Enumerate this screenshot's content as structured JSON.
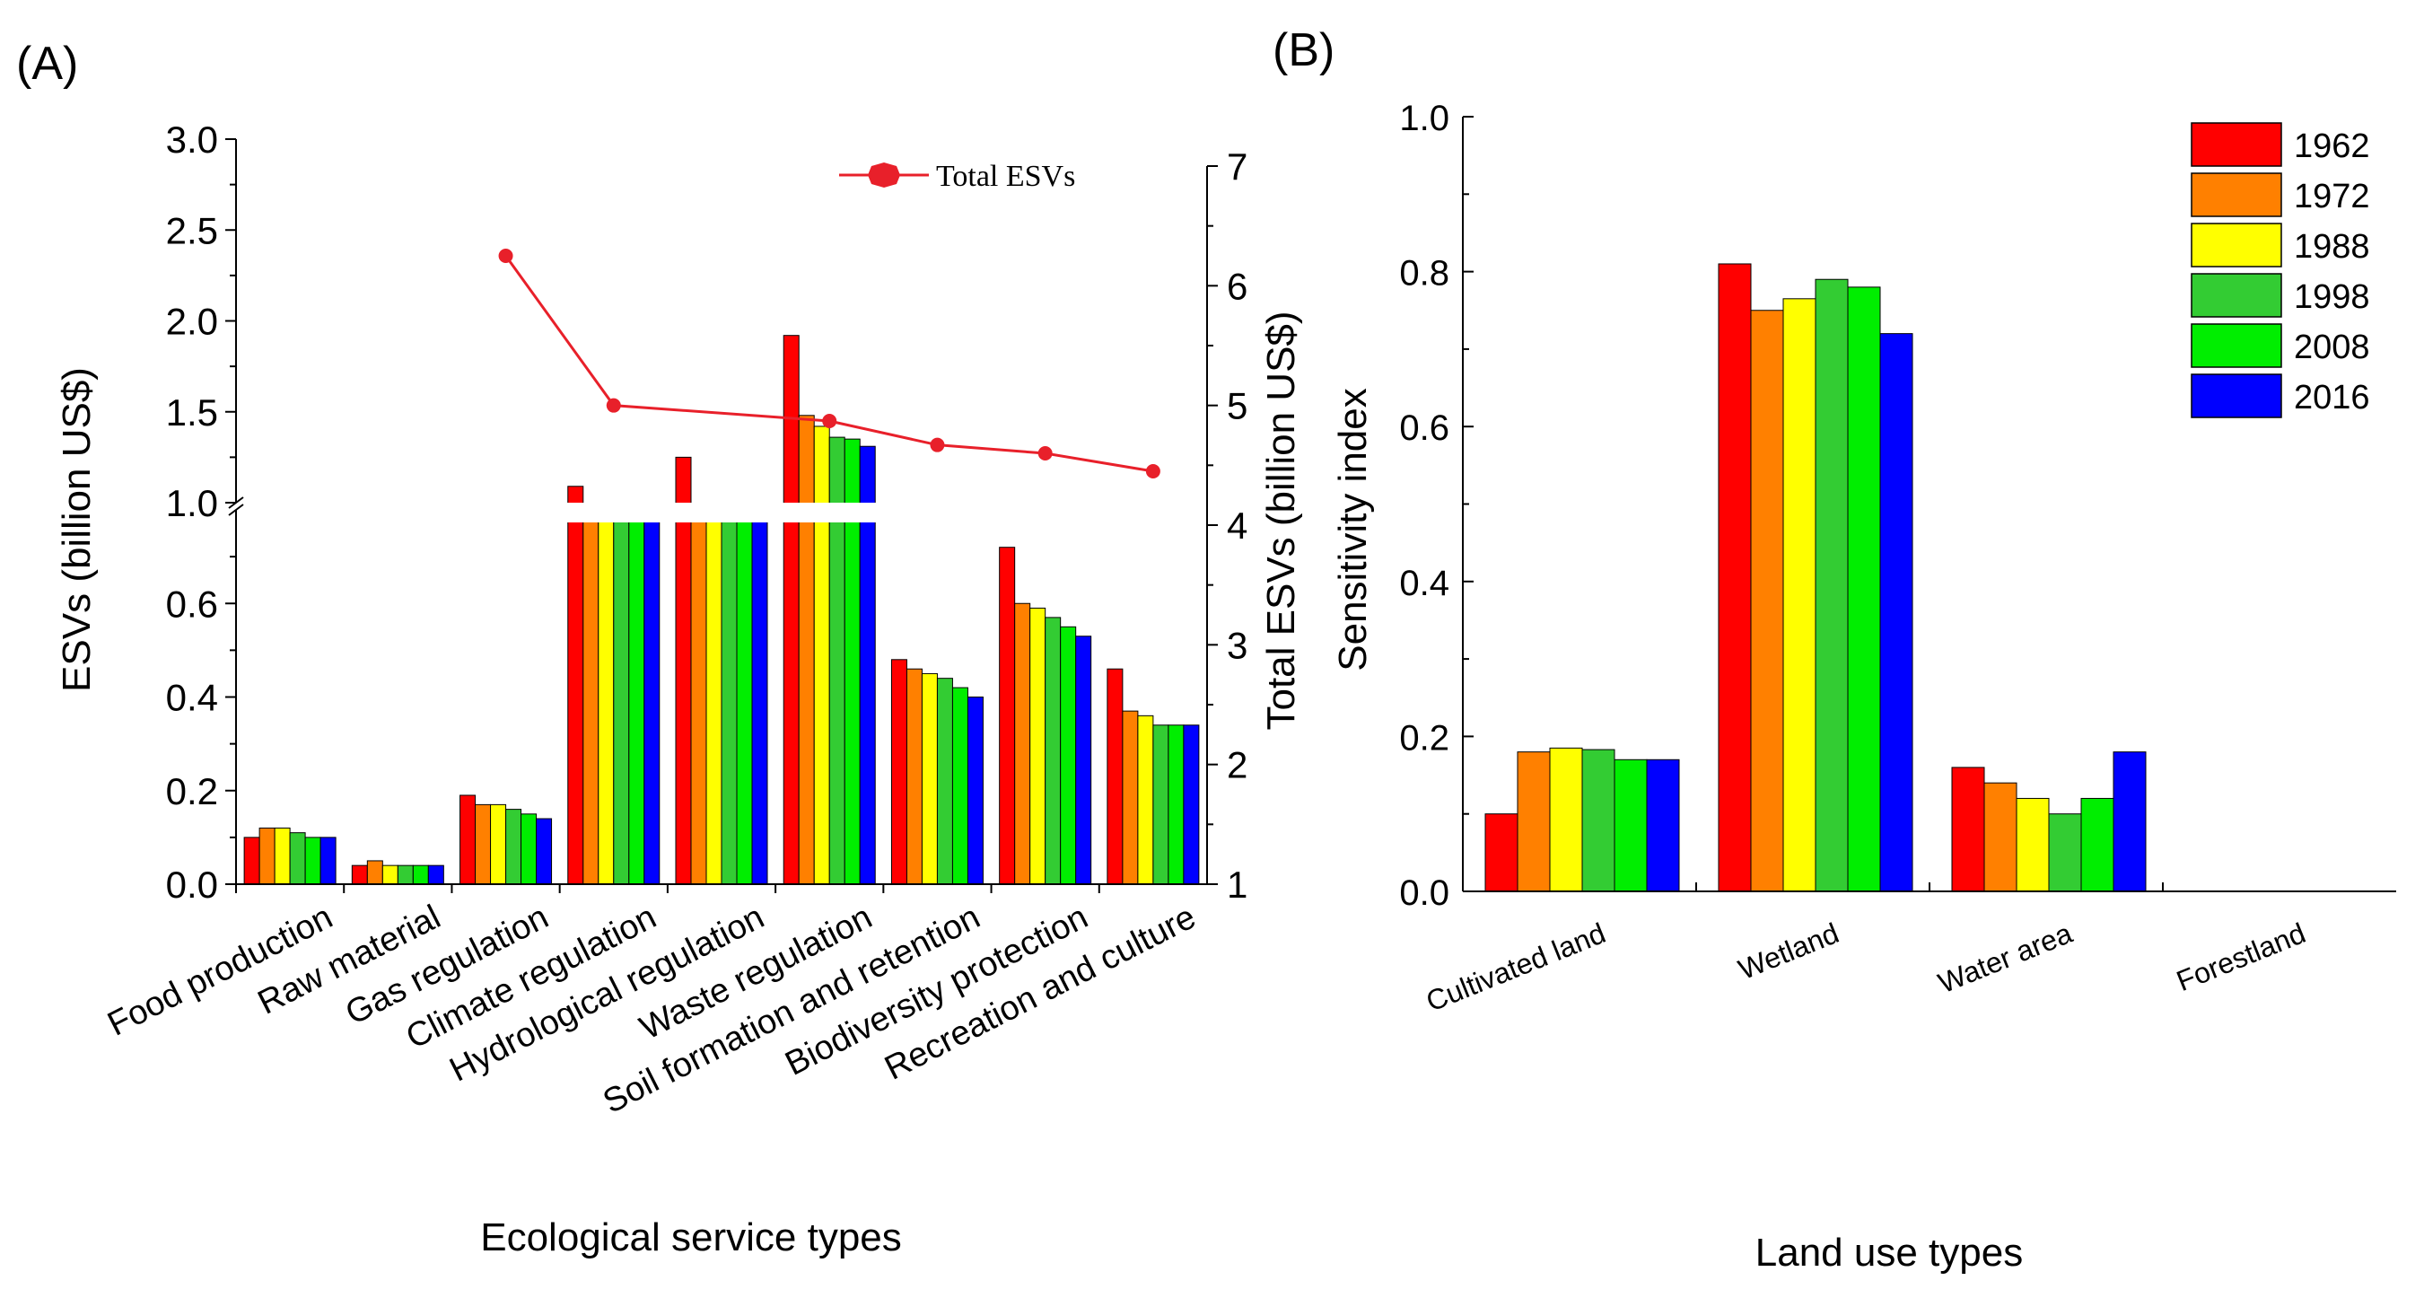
{
  "colors": {
    "series": [
      "#ff0000",
      "#ff8000",
      "#ffff00",
      "#33cc33",
      "#00ee00",
      "#0000ff"
    ],
    "line": "#e8202a",
    "axis": "#000000"
  },
  "chart_data": [
    {
      "panel_label": "(A)",
      "type": "bar",
      "xlabel": "Ecological service types",
      "ylabel": "ESVs (billion US$)",
      "y2label": "Total ESVs (billion US$)",
      "y_axis_break": {
        "lower": [
          0,
          0.8
        ],
        "upper": [
          1.0,
          3.0
        ]
      },
      "yticks_lower": [
        "0.0",
        "0.2",
        "0.4",
        "0.6"
      ],
      "yticks_upper": [
        "1.0",
        "1.5",
        "2.0",
        "2.5",
        "3.0"
      ],
      "y2lim": [
        1,
        7
      ],
      "y2ticks": [
        "1",
        "2",
        "3",
        "4",
        "5",
        "6",
        "7"
      ],
      "categories": [
        "Food production",
        "Raw material",
        "Gas regulation",
        "Climate regulation",
        "Hydrological regulation",
        "Waste regulation",
        "Soil formation and retention",
        "Biodiversity protection",
        "Recreation and culture"
      ],
      "series": [
        {
          "name": "1962",
          "values": [
            0.1,
            0.04,
            0.19,
            1.09,
            1.25,
            1.92,
            0.48,
            0.72,
            0.46
          ]
        },
        {
          "name": "1972",
          "values": [
            0.12,
            0.05,
            0.17,
            0.95,
            0.95,
            1.48,
            0.46,
            0.6,
            0.37
          ]
        },
        {
          "name": "1988",
          "values": [
            0.12,
            0.04,
            0.17,
            0.95,
            0.95,
            1.42,
            0.45,
            0.59,
            0.36
          ]
        },
        {
          "name": "1998",
          "values": [
            0.11,
            0.04,
            0.16,
            0.95,
            0.95,
            1.36,
            0.44,
            0.57,
            0.34
          ]
        },
        {
          "name": "2008",
          "values": [
            0.1,
            0.04,
            0.15,
            0.95,
            0.95,
            1.35,
            0.42,
            0.55,
            0.34
          ]
        },
        {
          "name": "2016",
          "values": [
            0.1,
            0.04,
            0.14,
            0.93,
            0.95,
            1.31,
            0.4,
            0.53,
            0.34
          ]
        }
      ],
      "line_series": {
        "name": "Total ESVs",
        "x_categories": [
          "Gas regulation",
          "Climate regulation",
          "Waste regulation",
          "Soil formation and retention",
          "Biodiversity protection",
          "Recreation and culture"
        ],
        "values": [
          6.25,
          5.0,
          4.87,
          4.67,
          4.6,
          4.45
        ]
      }
    },
    {
      "panel_label": "(B)",
      "type": "bar",
      "xlabel": "Land use types",
      "ylabel": "Sensitivity index",
      "ylim": [
        0,
        1.0
      ],
      "yticks": [
        "0.0",
        "0.2",
        "0.4",
        "0.6",
        "0.8",
        "1.0"
      ],
      "categories": [
        "Cultivated land",
        "Wetland",
        "Water area",
        "Forestland"
      ],
      "legend_position": "top-right",
      "series": [
        {
          "name": "1962",
          "values": [
            0.1,
            0.81,
            0.16,
            0
          ]
        },
        {
          "name": "1972",
          "values": [
            0.18,
            0.75,
            0.14,
            0
          ]
        },
        {
          "name": "1988",
          "values": [
            0.185,
            0.765,
            0.12,
            0
          ]
        },
        {
          "name": "1998",
          "values": [
            0.183,
            0.79,
            0.1,
            0
          ]
        },
        {
          "name": "2008",
          "values": [
            0.17,
            0.78,
            0.12,
            0
          ]
        },
        {
          "name": "2016",
          "values": [
            0.17,
            0.72,
            0.18,
            0
          ]
        }
      ]
    }
  ]
}
